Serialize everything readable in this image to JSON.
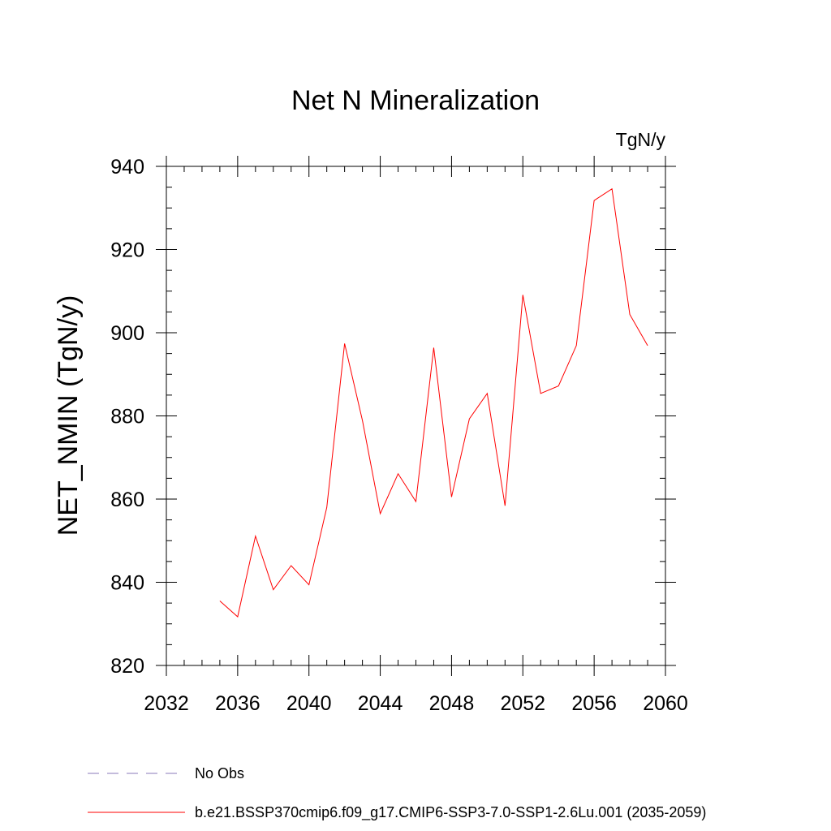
{
  "chart_data": {
    "type": "line",
    "title": "Net N Mineralization",
    "units_label": "TgN/y",
    "xlabel": "",
    "ylabel": "NET_NMIN  (TgN/y)",
    "xlim": [
      2032,
      2060
    ],
    "ylim": [
      820,
      940
    ],
    "xticks": [
      2032,
      2036,
      2040,
      2044,
      2048,
      2052,
      2056,
      2060
    ],
    "yticks": [
      820,
      840,
      860,
      880,
      900,
      920,
      940
    ],
    "x_minor_step": 1,
    "y_minor_step": 5,
    "grid": false,
    "legend_placement": "bottom",
    "series": [
      {
        "name": "b.e21.BSSP370cmip6.f09_g17.CMIP6-SSP3-7.0-SSP1-2.6Lu.001 (2035-2059)",
        "color": "#ff0000",
        "style": "solid",
        "x": [
          2035,
          2036,
          2037,
          2038,
          2039,
          2040,
          2041,
          2042,
          2043,
          2044,
          2045,
          2046,
          2047,
          2048,
          2049,
          2050,
          2051,
          2052,
          2053,
          2054,
          2055,
          2056,
          2057,
          2058,
          2059
        ],
        "values": [
          835.5,
          831.7,
          851.1,
          838.2,
          844.0,
          839.4,
          858.0,
          897.4,
          878.9,
          856.5,
          866.1,
          859.4,
          896.4,
          860.5,
          879.3,
          885.4,
          858.4,
          909.1,
          885.4,
          887.2,
          896.9,
          931.8,
          934.6,
          904.4,
          896.9
        ]
      }
    ],
    "legend": [
      {
        "label": "No Obs",
        "color": "#8878b8",
        "style": "dashed"
      },
      {
        "label": "b.e21.BSSP370cmip6.f09_g17.CMIP6-SSP3-7.0-SSP1-2.6Lu.001 (2035-2059)",
        "color": "#ff0000",
        "style": "solid"
      }
    ]
  }
}
